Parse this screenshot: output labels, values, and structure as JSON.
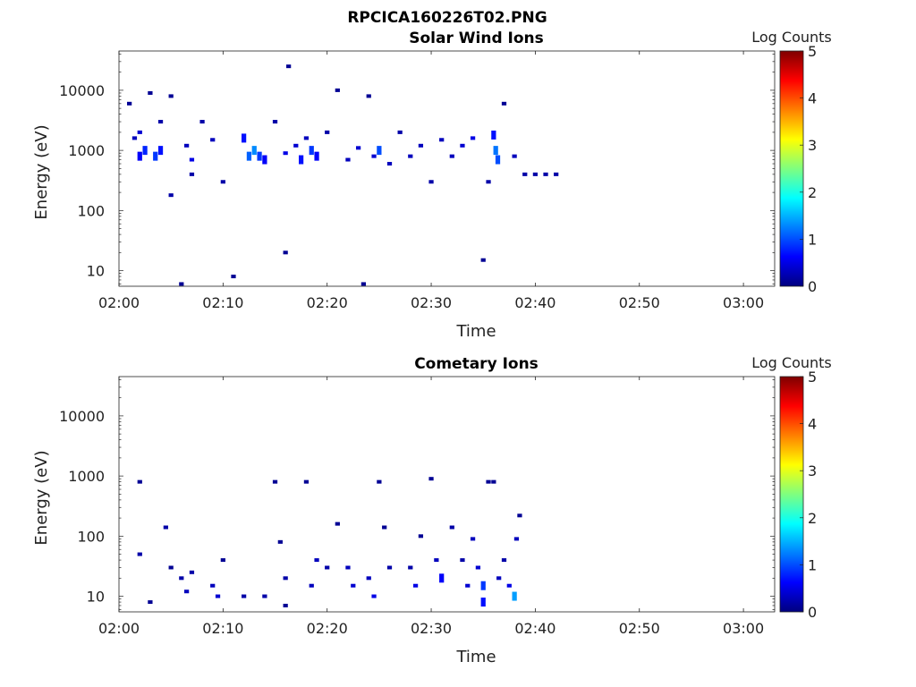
{
  "figure_title": "RPCICA160226T02.PNG",
  "colors": {
    "colormap": [
      "#00007f",
      "#0000ff",
      "#007fff",
      "#00ffff",
      "#7fff7f",
      "#ffff00",
      "#ff7f00",
      "#ff0000",
      "#7f0000"
    ],
    "axes": "#222222",
    "background": "#ffffff"
  },
  "chart_data": [
    {
      "type": "heatmap",
      "title": "Solar Wind Ions",
      "xlabel": "Time",
      "ylabel": "Energy (eV)",
      "xlim": [
        "02:00",
        "03:03"
      ],
      "ylim": [
        5.5,
        45000
      ],
      "yscale": "log",
      "x_ticks": [
        "02:00",
        "02:10",
        "02:20",
        "02:30",
        "02:40",
        "02:50",
        "03:00"
      ],
      "y_ticks": [
        10,
        100,
        1000,
        10000
      ],
      "colorbar": {
        "label": "Log Counts",
        "range": [
          0,
          5
        ],
        "ticks": [
          0,
          1,
          2,
          3,
          4,
          5
        ]
      },
      "data_extent": [
        "02:00",
        "02:43"
      ],
      "cells": [
        {
          "t": "02:01",
          "e": 6000,
          "c": 0.1
        },
        {
          "t": "02:01.5",
          "e": 1600,
          "c": 0.3
        },
        {
          "t": "02:02",
          "e": 800,
          "c": 0.6
        },
        {
          "t": "02:02",
          "e": 2000,
          "c": 0.4
        },
        {
          "t": "02:02.5",
          "e": 1000,
          "c": 0.8
        },
        {
          "t": "02:03",
          "e": 9000,
          "c": 0.1
        },
        {
          "t": "02:03.5",
          "e": 800,
          "c": 0.9
        },
        {
          "t": "02:04",
          "e": 3000,
          "c": 0.2
        },
        {
          "t": "02:04",
          "e": 1000,
          "c": 0.7
        },
        {
          "t": "02:05",
          "e": 8000,
          "c": 0.1
        },
        {
          "t": "02:05",
          "e": 180,
          "c": 0.2
        },
        {
          "t": "02:06",
          "e": 6,
          "c": 0.1
        },
        {
          "t": "02:06.5",
          "e": 1200,
          "c": 0.3
        },
        {
          "t": "02:07",
          "e": 700,
          "c": 0.5
        },
        {
          "t": "02:07",
          "e": 400,
          "c": 0.2
        },
        {
          "t": "02:08",
          "e": 3000,
          "c": 0.2
        },
        {
          "t": "02:09",
          "e": 1500,
          "c": 0.3
        },
        {
          "t": "02:10",
          "e": 300,
          "c": 0.2
        },
        {
          "t": "02:11",
          "e": 8,
          "c": 0.1
        },
        {
          "t": "02:12",
          "e": 1600,
          "c": 0.7
        },
        {
          "t": "02:12.5",
          "e": 800,
          "c": 1.1
        },
        {
          "t": "02:13",
          "e": 1000,
          "c": 1.3
        },
        {
          "t": "02:13.5",
          "e": 800,
          "c": 0.9
        },
        {
          "t": "02:14",
          "e": 700,
          "c": 0.6
        },
        {
          "t": "02:15",
          "e": 3000,
          "c": 0.2
        },
        {
          "t": "02:16",
          "e": 20,
          "c": 0.1
        },
        {
          "t": "02:16",
          "e": 900,
          "c": 0.5
        },
        {
          "t": "02:16.3",
          "e": 25000,
          "c": 0.1
        },
        {
          "t": "02:17",
          "e": 1200,
          "c": 0.4
        },
        {
          "t": "02:17.5",
          "e": 700,
          "c": 0.7
        },
        {
          "t": "02:18",
          "e": 1600,
          "c": 0.3
        },
        {
          "t": "02:18.5",
          "e": 1000,
          "c": 0.9
        },
        {
          "t": "02:19",
          "e": 800,
          "c": 0.6
        },
        {
          "t": "02:20",
          "e": 2000,
          "c": 0.2
        },
        {
          "t": "02:21",
          "e": 10000,
          "c": 0.1
        },
        {
          "t": "02:22",
          "e": 700,
          "c": 0.3
        },
        {
          "t": "02:23",
          "e": 1100,
          "c": 0.4
        },
        {
          "t": "02:23.5",
          "e": 6,
          "c": 0.1
        },
        {
          "t": "02:24",
          "e": 8000,
          "c": 0.1
        },
        {
          "t": "02:24.5",
          "e": 800,
          "c": 0.4
        },
        {
          "t": "02:25",
          "e": 1000,
          "c": 1.0
        },
        {
          "t": "02:26",
          "e": 600,
          "c": 0.3
        },
        {
          "t": "02:27",
          "e": 2000,
          "c": 0.2
        },
        {
          "t": "02:28",
          "e": 800,
          "c": 0.3
        },
        {
          "t": "02:29",
          "e": 1200,
          "c": 0.3
        },
        {
          "t": "02:30",
          "e": 300,
          "c": 0.2
        },
        {
          "t": "02:31",
          "e": 1500,
          "c": 0.3
        },
        {
          "t": "02:32",
          "e": 800,
          "c": 0.3
        },
        {
          "t": "02:33",
          "e": 1200,
          "c": 0.4
        },
        {
          "t": "02:34",
          "e": 1600,
          "c": 0.5
        },
        {
          "t": "02:35",
          "e": 15,
          "c": 0.1
        },
        {
          "t": "02:35.5",
          "e": 300,
          "c": 0.2
        },
        {
          "t": "02:36",
          "e": 1800,
          "c": 0.7
        },
        {
          "t": "02:36.2",
          "e": 1000,
          "c": 1.2
        },
        {
          "t": "02:36.4",
          "e": 700,
          "c": 1.0
        },
        {
          "t": "02:37",
          "e": 6000,
          "c": 0.1
        },
        {
          "t": "02:38",
          "e": 800,
          "c": 0.3
        },
        {
          "t": "02:39",
          "e": 400,
          "c": 0.2
        },
        {
          "t": "02:40",
          "e": 400,
          "c": 0.2
        },
        {
          "t": "02:41",
          "e": 400,
          "c": 0.2
        },
        {
          "t": "02:42",
          "e": 400,
          "c": 0.2
        }
      ]
    },
    {
      "type": "heatmap",
      "title": "Cometary Ions",
      "xlabel": "Time",
      "ylabel": "Energy (eV)",
      "xlim": [
        "02:00",
        "03:03"
      ],
      "ylim": [
        5.5,
        45000
      ],
      "yscale": "log",
      "x_ticks": [
        "02:00",
        "02:10",
        "02:20",
        "02:30",
        "02:40",
        "02:50",
        "03:00"
      ],
      "y_ticks": [
        10,
        100,
        1000,
        10000
      ],
      "colorbar": {
        "label": "Log Counts",
        "range": [
          0,
          5
        ],
        "ticks": [
          0,
          1,
          2,
          3,
          4,
          5
        ]
      },
      "data_extent": [
        "02:00",
        "02:39"
      ],
      "cells": [
        {
          "t": "02:02",
          "e": 800,
          "c": 0.1
        },
        {
          "t": "02:02",
          "e": 50,
          "c": 0.2
        },
        {
          "t": "02:03",
          "e": 8,
          "c": 0.1
        },
        {
          "t": "02:04.5",
          "e": 140,
          "c": 0.2
        },
        {
          "t": "02:05",
          "e": 30,
          "c": 0.1
        },
        {
          "t": "02:06",
          "e": 20,
          "c": 0.2
        },
        {
          "t": "02:06.5",
          "e": 12,
          "c": 0.3
        },
        {
          "t": "02:07",
          "e": 25,
          "c": 0.2
        },
        {
          "t": "02:09",
          "e": 15,
          "c": 0.3
        },
        {
          "t": "02:09.5",
          "e": 10,
          "c": 0.4
        },
        {
          "t": "02:10",
          "e": 40,
          "c": 0.1
        },
        {
          "t": "02:12",
          "e": 10,
          "c": 0.2
        },
        {
          "t": "02:14",
          "e": 10,
          "c": 0.2
        },
        {
          "t": "02:15",
          "e": 800,
          "c": 0.1
        },
        {
          "t": "02:15.5",
          "e": 80,
          "c": 0.1
        },
        {
          "t": "02:16",
          "e": 20,
          "c": 0.2
        },
        {
          "t": "02:16",
          "e": 7,
          "c": 0.1
        },
        {
          "t": "02:18",
          "e": 800,
          "c": 0.1
        },
        {
          "t": "02:18.5",
          "e": 15,
          "c": 0.3
        },
        {
          "t": "02:19",
          "e": 40,
          "c": 0.3
        },
        {
          "t": "02:20",
          "e": 30,
          "c": 0.2
        },
        {
          "t": "02:21",
          "e": 160,
          "c": 0.1
        },
        {
          "t": "02:22",
          "e": 30,
          "c": 0.3
        },
        {
          "t": "02:22.5",
          "e": 15,
          "c": 0.4
        },
        {
          "t": "02:24",
          "e": 20,
          "c": 0.3
        },
        {
          "t": "02:24.5",
          "e": 10,
          "c": 0.5
        },
        {
          "t": "02:25",
          "e": 800,
          "c": 0.1
        },
        {
          "t": "02:25.5",
          "e": 140,
          "c": 0.1
        },
        {
          "t": "02:26",
          "e": 30,
          "c": 0.2
        },
        {
          "t": "02:28",
          "e": 30,
          "c": 0.2
        },
        {
          "t": "02:28.5",
          "e": 15,
          "c": 0.5
        },
        {
          "t": "02:29",
          "e": 100,
          "c": 0.1
        },
        {
          "t": "02:30",
          "e": 900,
          "c": 0.1
        },
        {
          "t": "02:30.5",
          "e": 40,
          "c": 0.3
        },
        {
          "t": "02:31",
          "e": 20,
          "c": 0.6
        },
        {
          "t": "02:32",
          "e": 140,
          "c": 0.2
        },
        {
          "t": "02:33",
          "e": 40,
          "c": 0.2
        },
        {
          "t": "02:33.5",
          "e": 15,
          "c": 0.4
        },
        {
          "t": "02:34",
          "e": 90,
          "c": 0.3
        },
        {
          "t": "02:34.5",
          "e": 30,
          "c": 0.4
        },
        {
          "t": "02:35",
          "e": 15,
          "c": 0.9
        },
        {
          "t": "02:35",
          "e": 8,
          "c": 0.7
        },
        {
          "t": "02:35.5",
          "e": 800,
          "c": 0.1
        },
        {
          "t": "02:36",
          "e": 800,
          "c": 0.1
        },
        {
          "t": "02:36.5",
          "e": 20,
          "c": 0.3
        },
        {
          "t": "02:37",
          "e": 40,
          "c": 0.2
        },
        {
          "t": "02:37.5",
          "e": 15,
          "c": 0.5
        },
        {
          "t": "02:38",
          "e": 10,
          "c": 1.4
        },
        {
          "t": "02:38.2",
          "e": 90,
          "c": 0.3
        },
        {
          "t": "02:38.5",
          "e": 220,
          "c": 0.1
        }
      ]
    }
  ]
}
